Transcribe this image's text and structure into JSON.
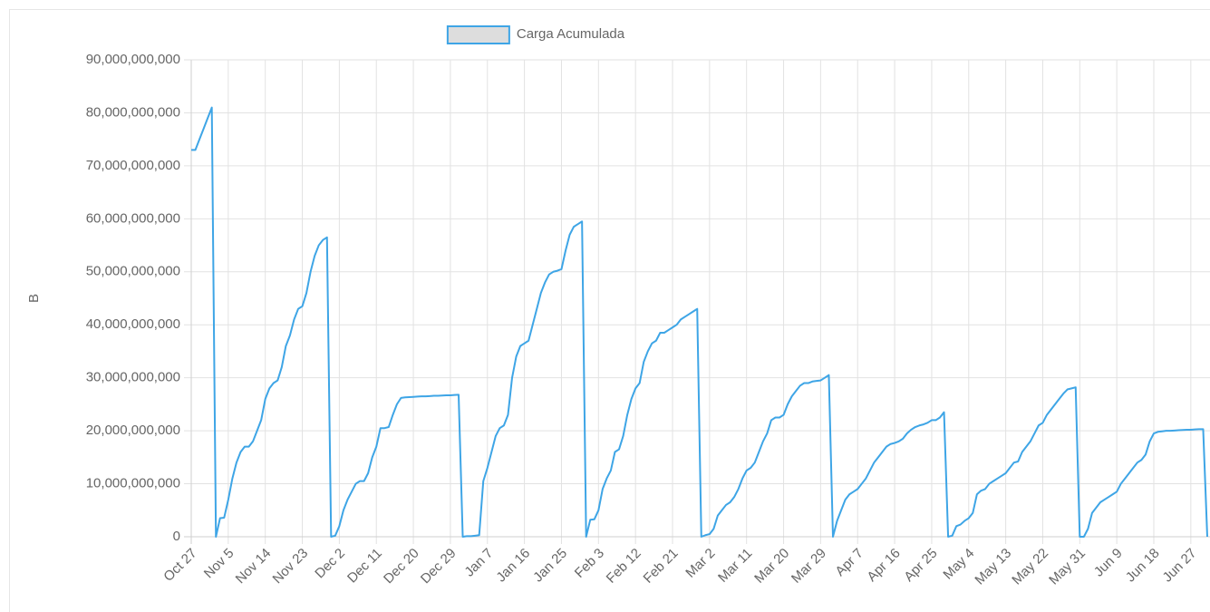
{
  "chart_data": {
    "type": "line",
    "y_label": "B",
    "categories": [
      "Oct 27",
      "Oct 28",
      "Oct 29",
      "Oct 30",
      "Oct 31",
      "Nov 1",
      "Nov 2",
      "Nov 3",
      "Nov 4",
      "Nov 5",
      "Nov 6",
      "Nov 7",
      "Nov 8",
      "Nov 9",
      "Nov 10",
      "Nov 11",
      "Nov 12",
      "Nov 13",
      "Nov 14",
      "Nov 15",
      "Nov 16",
      "Nov 17",
      "Nov 18",
      "Nov 19",
      "Nov 20",
      "Nov 21",
      "Nov 22",
      "Nov 23",
      "Nov 24",
      "Nov 25",
      "Nov 26",
      "Nov 27",
      "Nov 28",
      "Nov 29",
      "Nov 30",
      "Dec 1",
      "Dec 2",
      "Dec 3",
      "Dec 4",
      "Dec 5",
      "Dec 6",
      "Dec 7",
      "Dec 8",
      "Dec 9",
      "Dec 10",
      "Dec 11",
      "Dec 12",
      "Dec 13",
      "Dec 14",
      "Dec 15",
      "Dec 16",
      "Dec 17",
      "Dec 18",
      "Dec 19",
      "Dec 20",
      "Dec 21",
      "Dec 22",
      "Dec 23",
      "Dec 24",
      "Dec 25",
      "Dec 26",
      "Dec 27",
      "Dec 28",
      "Dec 29",
      "Dec 30",
      "Dec 31",
      "Jan 1",
      "Jan 2",
      "Jan 3",
      "Jan 4",
      "Jan 5",
      "Jan 6",
      "Jan 7",
      "Jan 8",
      "Jan 9",
      "Jan 10",
      "Jan 11",
      "Jan 12",
      "Jan 13",
      "Jan 14",
      "Jan 15",
      "Jan 16",
      "Jan 17",
      "Jan 18",
      "Jan 19",
      "Jan 20",
      "Jan 21",
      "Jan 22",
      "Jan 23",
      "Jan 24",
      "Jan 25",
      "Jan 26",
      "Jan 27",
      "Jan 28",
      "Jan 29",
      "Jan 30",
      "Jan 31",
      "Feb 1",
      "Feb 2",
      "Feb 3",
      "Feb 4",
      "Feb 5",
      "Feb 6",
      "Feb 7",
      "Feb 8",
      "Feb 9",
      "Feb 10",
      "Feb 11",
      "Feb 12",
      "Feb 13",
      "Feb 14",
      "Feb 15",
      "Feb 16",
      "Feb 17",
      "Feb 18",
      "Feb 19",
      "Feb 20",
      "Feb 21",
      "Feb 22",
      "Feb 23",
      "Feb 24",
      "Feb 25",
      "Feb 26",
      "Feb 27",
      "Feb 28",
      "Mar 1",
      "Mar 2",
      "Mar 3",
      "Mar 4",
      "Mar 5",
      "Mar 6",
      "Mar 7",
      "Mar 8",
      "Mar 9",
      "Mar 10",
      "Mar 11",
      "Mar 12",
      "Mar 13",
      "Mar 14",
      "Mar 15",
      "Mar 16",
      "Mar 17",
      "Mar 18",
      "Mar 19",
      "Mar 20",
      "Mar 21",
      "Mar 22",
      "Mar 23",
      "Mar 24",
      "Mar 25",
      "Mar 26",
      "Mar 27",
      "Mar 28",
      "Mar 29",
      "Mar 30",
      "Mar 31",
      "Apr 1",
      "Apr 2",
      "Apr 3",
      "Apr 4",
      "Apr 5",
      "Apr 6",
      "Apr 7",
      "Apr 8",
      "Apr 9",
      "Apr 10",
      "Apr 11",
      "Apr 12",
      "Apr 13",
      "Apr 14",
      "Apr 15",
      "Apr 16",
      "Apr 17",
      "Apr 18",
      "Apr 19",
      "Apr 20",
      "Apr 21",
      "Apr 22",
      "Apr 23",
      "Apr 24",
      "Apr 25",
      "Apr 26",
      "Apr 27",
      "Apr 28",
      "Apr 29",
      "Apr 30",
      "May 1",
      "May 2",
      "May 3",
      "May 4",
      "May 5",
      "May 6",
      "May 7",
      "May 8",
      "May 9",
      "May 10",
      "May 11",
      "May 12",
      "May 13",
      "May 14",
      "May 15",
      "May 16",
      "May 17",
      "May 18",
      "May 19",
      "May 20",
      "May 21",
      "May 22",
      "May 23",
      "May 24",
      "May 25",
      "May 26",
      "May 27",
      "May 28",
      "May 29",
      "May 30",
      "May 31",
      "Jun 1",
      "Jun 2",
      "Jun 3",
      "Jun 4",
      "Jun 5",
      "Jun 6",
      "Jun 7",
      "Jun 8",
      "Jun 9",
      "Jun 10",
      "Jun 11",
      "Jun 12",
      "Jun 13",
      "Jun 14",
      "Jun 15",
      "Jun 16",
      "Jun 17",
      "Jun 18",
      "Jun 19",
      "Jun 20",
      "Jun 21",
      "Jun 22",
      "Jun 23",
      "Jun 24",
      "Jun 25",
      "Jun 26",
      "Jun 27",
      "Jun 28",
      "Jun 29",
      "Jun 30",
      "Jul 1"
    ],
    "series": [
      {
        "name": "Carga Acumulada",
        "color": "#3ea5e6",
        "legend_fill": "#dddddd",
        "values": [
          73000000000.0,
          73000000000.0,
          75000000000.0,
          77000000000.0,
          79000000000.0,
          81000000000.0,
          0,
          3500000000.0,
          3600000000.0,
          7000000000.0,
          11000000000.0,
          14000000000.0,
          16000000000.0,
          17000000000.0,
          17000000000.0,
          18000000000.0,
          20000000000.0,
          22000000000.0,
          26000000000.0,
          28000000000.0,
          29000000000.0,
          29500000000.0,
          32000000000.0,
          36000000000.0,
          38000000000.0,
          41000000000.0,
          43000000000.0,
          43500000000.0,
          46000000000.0,
          50000000000.0,
          53000000000.0,
          55000000000.0,
          56000000000.0,
          56500000000.0,
          0,
          200000000.0,
          2000000000.0,
          5000000000.0,
          7000000000.0,
          8500000000.0,
          10000000000.0,
          10500000000.0,
          10500000000.0,
          12000000000.0,
          15000000000.0,
          17000000000.0,
          20500000000.0,
          20500000000.0,
          20700000000.0,
          23000000000.0,
          25000000000.0,
          26200000000.0,
          26300000000.0,
          26350000000.0,
          26400000000.0,
          26450000000.0,
          26500000000.0,
          26500000000.0,
          26550000000.0,
          26600000000.0,
          26600000000.0,
          26650000000.0,
          26700000000.0,
          26700000000.0,
          26750000000.0,
          26800000000.0,
          0,
          100000000.0,
          100000000.0,
          200000000.0,
          300000000.0,
          10500000000.0,
          13000000000.0,
          16000000000.0,
          19000000000.0,
          20500000000.0,
          21000000000.0,
          23000000000.0,
          30000000000.0,
          34000000000.0,
          36000000000.0,
          36500000000.0,
          37000000000.0,
          40000000000.0,
          43000000000.0,
          46000000000.0,
          48000000000.0,
          49500000000.0,
          50000000000.0,
          50200000000.0,
          50500000000.0,
          54000000000.0,
          57000000000.0,
          58500000000.0,
          59000000000.0,
          59500000000.0,
          0,
          3200000000.0,
          3300000000.0,
          5000000000.0,
          9000000000.0,
          11000000000.0,
          12500000000.0,
          16000000000.0,
          16500000000.0,
          19000000000.0,
          23000000000.0,
          26000000000.0,
          28000000000.0,
          29000000000.0,
          33000000000.0,
          35000000000.0,
          36500000000.0,
          37000000000.0,
          38500000000.0,
          38500000000.0,
          39000000000.0,
          39500000000.0,
          40000000000.0,
          41000000000.0,
          41500000000.0,
          42000000000.0,
          42500000000.0,
          43000000000.0,
          0,
          300000000.0,
          500000000.0,
          1500000000.0,
          4000000000.0,
          5000000000.0,
          6000000000.0,
          6500000000.0,
          7500000000.0,
          9000000000.0,
          11000000000.0,
          12500000000.0,
          13000000000.0,
          14000000000.0,
          16000000000.0,
          18000000000.0,
          19500000000.0,
          22000000000.0,
          22500000000.0,
          22500000000.0,
          23000000000.0,
          25000000000.0,
          26500000000.0,
          27500000000.0,
          28500000000.0,
          29000000000.0,
          29000000000.0,
          29300000000.0,
          29400000000.0,
          29500000000.0,
          30000000000.0,
          30500000000.0,
          0,
          3000000000.0,
          5000000000.0,
          7000000000.0,
          8000000000.0,
          8500000000.0,
          9000000000.0,
          10000000000.0,
          11000000000.0,
          12500000000.0,
          14000000000.0,
          15000000000.0,
          16000000000.0,
          17000000000.0,
          17500000000.0,
          17700000000.0,
          18000000000.0,
          18500000000.0,
          19500000000.0,
          20200000000.0,
          20700000000.0,
          21000000000.0,
          21200000000.0,
          21500000000.0,
          22000000000.0,
          22000000000.0,
          22500000000.0,
          23500000000.0,
          0,
          200000000.0,
          2000000000.0,
          2300000000.0,
          3000000000.0,
          3500000000.0,
          4500000000.0,
          8000000000.0,
          8700000000.0,
          9000000000.0,
          10000000000.0,
          10500000000.0,
          11000000000.0,
          11500000000.0,
          12000000000.0,
          13000000000.0,
          14000000000.0,
          14200000000.0,
          16000000000.0,
          17000000000.0,
          18000000000.0,
          19500000000.0,
          21000000000.0,
          21500000000.0,
          23000000000.0,
          24000000000.0,
          25000000000.0,
          26000000000.0,
          27000000000.0,
          27800000000.0,
          28000000000.0,
          28200000000.0,
          0,
          0,
          1500000000.0,
          4500000000.0,
          5500000000.0,
          6500000000.0,
          7000000000.0,
          7500000000.0,
          8000000000.0,
          8500000000.0,
          10000000000.0,
          11000000000.0,
          12000000000.0,
          13000000000.0,
          14000000000.0,
          14500000000.0,
          15500000000.0,
          18000000000.0,
          19500000000.0,
          19800000000.0,
          19900000000.0,
          20000000000.0,
          20000000000.0,
          20050000000.0,
          20100000000.0,
          20150000000.0,
          20200000000.0,
          20200000000.0,
          20250000000.0,
          20300000000.0,
          20300000000.0,
          0
        ]
      }
    ],
    "xticks": [
      "Oct 27",
      "Nov 5",
      "Nov 14",
      "Nov 23",
      "Dec 2",
      "Dec 11",
      "Dec 20",
      "Dec 29",
      "Jan 7",
      "Jan 16",
      "Jan 25",
      "Feb 3",
      "Feb 12",
      "Feb 21",
      "Mar 2",
      "Mar 11",
      "Mar 20",
      "Mar 29",
      "Apr 7",
      "Apr 16",
      "Apr 25",
      "May 4",
      "May 13",
      "May 22",
      "May 31",
      "Jun 9",
      "Jun 18",
      "Jun 27"
    ],
    "ylim": [
      0,
      90000000000
    ],
    "yticks": [
      0,
      {
        "value": 10000000000,
        "label": "10,000,000,000"
      },
      {
        "value": 20000000000,
        "label": "20,000,000,000"
      },
      {
        "value": 30000000000,
        "label": "30,000,000,000"
      },
      {
        "value": 40000000000,
        "label": "40,000,000,000"
      },
      {
        "value": 50000000000,
        "label": "50,000,000,000"
      },
      {
        "value": 60000000000,
        "label": "60,000,000,000"
      },
      {
        "value": 70000000000,
        "label": "70,000,000,000"
      },
      {
        "value": 80000000000,
        "label": "80,000,000,000"
      },
      {
        "value": 90000000000,
        "label": "90,000,000,000"
      }
    ],
    "grid": true,
    "legend": "top"
  }
}
